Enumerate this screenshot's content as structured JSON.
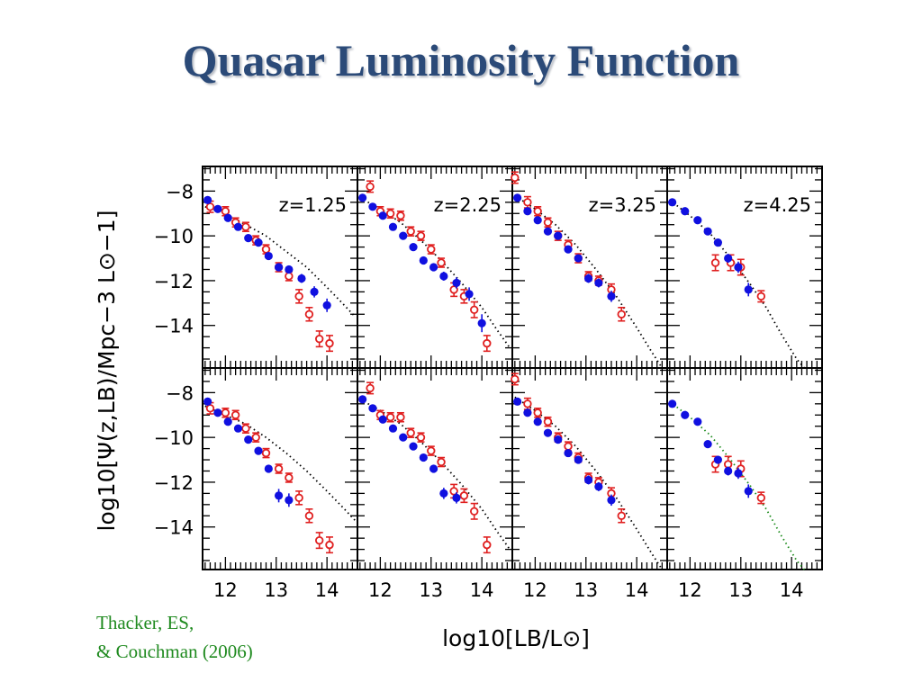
{
  "slide": {
    "title": "Quasar Luminosity Function",
    "citation_line1": "Thacker, ES,",
    "citation_line2": "& Couchman (2006)"
  },
  "colors": {
    "title": "#2b4a78",
    "simulation": "#1010e0",
    "observed": "#e02020",
    "model_curve": "#000000",
    "model_curve_highz_bottom": "#1a8a1a",
    "citation": "#1f8a1f"
  },
  "chart_data": {
    "type": "scatter",
    "layout": "2 rows x 4 columns of panels, shared axes",
    "xlabel": "log10[LB/L⊙]",
    "ylabel": "log10[Ψ(z,LB)/Mpc−3 L⊙−1]",
    "xlim": [
      11.55,
      14.6
    ],
    "ylim": [
      -15.9,
      -6.9
    ],
    "x_ticks": [
      12,
      13,
      14
    ],
    "y_ticks": [
      -8,
      -10,
      -12,
      -14
    ],
    "x_tick_labels": [
      "12",
      "13",
      "14"
    ],
    "y_tick_labels": [
      "−8",
      "−10",
      "−12",
      "−14"
    ],
    "panel_labels": [
      "z=1.25",
      "z=2.25",
      "z=3.25",
      "z=4.25"
    ],
    "series_styles": {
      "simulation": "filled blue circles with error bars",
      "observed": "open red circles with error bars",
      "model": "dotted curve"
    },
    "panels": [
      {
        "row": 0,
        "label": "z=1.25",
        "simulation": [
          [
            11.65,
            -8.4,
            0.1
          ],
          [
            11.85,
            -8.8,
            0.1
          ],
          [
            12.05,
            -9.2,
            0.1
          ],
          [
            12.25,
            -9.6,
            0.1
          ],
          [
            12.45,
            -10.1,
            0.12
          ],
          [
            12.65,
            -10.3,
            0.12
          ],
          [
            12.85,
            -10.9,
            0.12
          ],
          [
            13.05,
            -11.4,
            0.15
          ],
          [
            13.25,
            -11.5,
            0.15
          ],
          [
            13.5,
            -11.9,
            0.2
          ],
          [
            13.75,
            -12.5,
            0.25
          ],
          [
            14.0,
            -13.1,
            0.3
          ]
        ],
        "observed": [
          [
            11.7,
            -8.7,
            0.25
          ],
          [
            12.0,
            -8.9,
            0.2
          ],
          [
            12.2,
            -9.4,
            0.2
          ],
          [
            12.4,
            -9.6,
            0.2
          ],
          [
            12.6,
            -10.2,
            0.2
          ],
          [
            12.8,
            -10.6,
            0.2
          ],
          [
            13.05,
            -11.4,
            0.2
          ],
          [
            13.25,
            -11.8,
            0.2
          ],
          [
            13.45,
            -12.7,
            0.3
          ],
          [
            13.65,
            -13.5,
            0.3
          ],
          [
            13.85,
            -14.6,
            0.35
          ],
          [
            14.05,
            -14.8,
            0.35
          ]
        ],
        "model": [
          [
            11.6,
            -8.7
          ],
          [
            12.0,
            -9.0
          ],
          [
            12.4,
            -9.5
          ],
          [
            12.8,
            -10.0
          ],
          [
            13.2,
            -10.7
          ],
          [
            13.6,
            -11.4
          ],
          [
            14.0,
            -12.3
          ],
          [
            14.3,
            -13.0
          ],
          [
            14.55,
            -13.6
          ]
        ]
      },
      {
        "row": 0,
        "label": "z=2.25",
        "simulation": [
          [
            11.65,
            -8.3,
            0.1
          ],
          [
            11.85,
            -8.7,
            0.1
          ],
          [
            12.05,
            -9.1,
            0.1
          ],
          [
            12.25,
            -9.6,
            0.1
          ],
          [
            12.45,
            -10.0,
            0.12
          ],
          [
            12.65,
            -10.5,
            0.12
          ],
          [
            12.85,
            -11.1,
            0.12
          ],
          [
            13.05,
            -11.4,
            0.15
          ],
          [
            13.25,
            -11.8,
            0.2
          ],
          [
            13.5,
            -12.1,
            0.25
          ],
          [
            13.75,
            -12.6,
            0.3
          ],
          [
            14.0,
            -13.9,
            0.4
          ]
        ],
        "observed": [
          [
            11.8,
            -7.8,
            0.25
          ],
          [
            12.0,
            -8.9,
            0.2
          ],
          [
            12.2,
            -9.0,
            0.2
          ],
          [
            12.4,
            -9.1,
            0.2
          ],
          [
            12.6,
            -9.8,
            0.2
          ],
          [
            12.8,
            -10.0,
            0.2
          ],
          [
            13.0,
            -10.6,
            0.2
          ],
          [
            13.2,
            -11.2,
            0.2
          ],
          [
            13.45,
            -12.4,
            0.3
          ],
          [
            13.65,
            -12.7,
            0.3
          ],
          [
            13.85,
            -13.3,
            0.35
          ],
          [
            14.1,
            -14.8,
            0.35
          ]
        ],
        "model": [
          [
            11.6,
            -8.3
          ],
          [
            12.0,
            -8.8
          ],
          [
            12.4,
            -9.4
          ],
          [
            12.8,
            -10.2
          ],
          [
            13.2,
            -11.1
          ],
          [
            13.6,
            -12.1
          ],
          [
            14.0,
            -13.2
          ],
          [
            14.3,
            -14.2
          ],
          [
            14.55,
            -15.0
          ]
        ]
      },
      {
        "row": 0,
        "label": "z=3.25",
        "simulation": [
          [
            11.65,
            -8.3,
            0.1
          ],
          [
            11.85,
            -8.9,
            0.1
          ],
          [
            12.05,
            -9.3,
            0.1
          ],
          [
            12.25,
            -9.8,
            0.12
          ],
          [
            12.45,
            -10.0,
            0.12
          ],
          [
            12.65,
            -10.6,
            0.15
          ],
          [
            12.85,
            -11.0,
            0.15
          ],
          [
            13.05,
            -11.9,
            0.2
          ],
          [
            13.25,
            -12.1,
            0.2
          ],
          [
            13.5,
            -12.7,
            0.25
          ]
        ],
        "observed": [
          [
            11.6,
            -7.4,
            0.25
          ],
          [
            11.85,
            -8.5,
            0.25
          ],
          [
            12.05,
            -8.9,
            0.2
          ],
          [
            12.25,
            -9.4,
            0.2
          ],
          [
            12.45,
            -10.0,
            0.2
          ],
          [
            12.65,
            -10.4,
            0.2
          ],
          [
            12.85,
            -11.0,
            0.2
          ],
          [
            13.05,
            -11.8,
            0.2
          ],
          [
            13.25,
            -12.0,
            0.2
          ],
          [
            13.5,
            -12.4,
            0.25
          ],
          [
            13.7,
            -13.5,
            0.3
          ]
        ],
        "model": [
          [
            11.6,
            -8.2
          ],
          [
            12.0,
            -8.8
          ],
          [
            12.4,
            -9.5
          ],
          [
            12.8,
            -10.4
          ],
          [
            13.2,
            -11.5
          ],
          [
            13.6,
            -12.7
          ],
          [
            14.0,
            -14.1
          ],
          [
            14.3,
            -15.2
          ],
          [
            14.5,
            -15.9
          ]
        ]
      },
      {
        "row": 0,
        "label": "z=4.25",
        "simulation": [
          [
            11.65,
            -8.5,
            0.1
          ],
          [
            11.9,
            -8.9,
            0.1
          ],
          [
            12.15,
            -9.3,
            0.1
          ],
          [
            12.35,
            -9.8,
            0.12
          ],
          [
            12.55,
            -10.3,
            0.15
          ],
          [
            12.75,
            -11.0,
            0.2
          ],
          [
            12.95,
            -11.4,
            0.25
          ],
          [
            13.15,
            -12.4,
            0.3
          ]
        ],
        "observed": [
          [
            12.5,
            -11.2,
            0.35
          ],
          [
            12.8,
            -11.2,
            0.35
          ],
          [
            13.0,
            -11.4,
            0.35
          ],
          [
            13.4,
            -12.7,
            0.25
          ]
        ],
        "model": [
          [
            11.6,
            -8.4
          ],
          [
            12.0,
            -9.1
          ],
          [
            12.4,
            -9.9
          ],
          [
            12.8,
            -11.0
          ],
          [
            13.2,
            -12.2
          ],
          [
            13.5,
            -13.2
          ],
          [
            13.8,
            -14.4
          ],
          [
            14.1,
            -15.5
          ],
          [
            14.25,
            -15.9
          ]
        ]
      },
      {
        "row": 1,
        "label": "",
        "simulation": [
          [
            11.65,
            -8.4,
            0.1
          ],
          [
            11.85,
            -8.9,
            0.1
          ],
          [
            12.05,
            -9.3,
            0.1
          ],
          [
            12.25,
            -9.6,
            0.12
          ],
          [
            12.45,
            -10.1,
            0.12
          ],
          [
            12.65,
            -10.6,
            0.15
          ],
          [
            12.85,
            -11.4,
            0.15
          ],
          [
            13.05,
            -12.6,
            0.3
          ],
          [
            13.25,
            -12.8,
            0.3
          ]
        ],
        "observed": [
          [
            11.7,
            -8.7,
            0.25
          ],
          [
            12.0,
            -8.9,
            0.2
          ],
          [
            12.2,
            -9.0,
            0.2
          ],
          [
            12.4,
            -9.6,
            0.2
          ],
          [
            12.6,
            -10.0,
            0.2
          ],
          [
            12.8,
            -10.7,
            0.2
          ],
          [
            13.05,
            -11.4,
            0.2
          ],
          [
            13.25,
            -11.8,
            0.2
          ],
          [
            13.45,
            -12.7,
            0.3
          ],
          [
            13.65,
            -13.5,
            0.3
          ],
          [
            13.85,
            -14.6,
            0.35
          ],
          [
            14.05,
            -14.8,
            0.35
          ]
        ],
        "model": [
          [
            11.6,
            -8.6
          ],
          [
            12.0,
            -9.0
          ],
          [
            12.4,
            -9.4
          ],
          [
            12.8,
            -10.0
          ],
          [
            13.2,
            -10.7
          ],
          [
            13.6,
            -11.5
          ],
          [
            14.0,
            -12.4
          ],
          [
            14.3,
            -13.1
          ],
          [
            14.55,
            -13.7
          ]
        ]
      },
      {
        "row": 1,
        "label": "",
        "simulation": [
          [
            11.65,
            -8.3,
            0.1
          ],
          [
            11.85,
            -8.7,
            0.1
          ],
          [
            12.05,
            -9.2,
            0.1
          ],
          [
            12.25,
            -9.6,
            0.1
          ],
          [
            12.45,
            -10.0,
            0.12
          ],
          [
            12.65,
            -10.4,
            0.12
          ],
          [
            12.85,
            -10.9,
            0.12
          ],
          [
            13.05,
            -11.4,
            0.15
          ],
          [
            13.25,
            -12.5,
            0.25
          ],
          [
            13.5,
            -12.7,
            0.25
          ]
        ],
        "observed": [
          [
            11.8,
            -7.8,
            0.25
          ],
          [
            12.0,
            -9.0,
            0.2
          ],
          [
            12.2,
            -9.1,
            0.2
          ],
          [
            12.4,
            -9.1,
            0.2
          ],
          [
            12.6,
            -9.8,
            0.2
          ],
          [
            12.8,
            -10.0,
            0.2
          ],
          [
            13.0,
            -10.6,
            0.2
          ],
          [
            13.2,
            -11.1,
            0.2
          ],
          [
            13.45,
            -12.4,
            0.3
          ],
          [
            13.65,
            -12.6,
            0.3
          ],
          [
            13.85,
            -13.3,
            0.35
          ],
          [
            14.1,
            -14.8,
            0.35
          ]
        ],
        "model": [
          [
            11.6,
            -8.3
          ],
          [
            12.0,
            -8.8
          ],
          [
            12.4,
            -9.4
          ],
          [
            12.8,
            -10.2
          ],
          [
            13.2,
            -11.1
          ],
          [
            13.6,
            -12.1
          ],
          [
            14.0,
            -13.2
          ],
          [
            14.3,
            -14.2
          ],
          [
            14.55,
            -15.0
          ]
        ]
      },
      {
        "row": 1,
        "label": "",
        "simulation": [
          [
            11.65,
            -8.4,
            0.1
          ],
          [
            11.85,
            -8.9,
            0.1
          ],
          [
            12.05,
            -9.3,
            0.1
          ],
          [
            12.25,
            -9.8,
            0.12
          ],
          [
            12.45,
            -10.1,
            0.12
          ],
          [
            12.65,
            -10.7,
            0.15
          ],
          [
            12.85,
            -11.0,
            0.15
          ],
          [
            13.05,
            -11.9,
            0.2
          ],
          [
            13.25,
            -12.2,
            0.2
          ],
          [
            13.5,
            -12.8,
            0.25
          ]
        ],
        "observed": [
          [
            11.6,
            -7.4,
            0.25
          ],
          [
            11.85,
            -8.5,
            0.25
          ],
          [
            12.05,
            -8.9,
            0.2
          ],
          [
            12.25,
            -9.3,
            0.2
          ],
          [
            12.45,
            -10.0,
            0.2
          ],
          [
            12.65,
            -10.4,
            0.2
          ],
          [
            12.85,
            -10.9,
            0.2
          ],
          [
            13.05,
            -11.8,
            0.2
          ],
          [
            13.25,
            -12.0,
            0.2
          ],
          [
            13.5,
            -12.5,
            0.25
          ],
          [
            13.7,
            -13.5,
            0.3
          ]
        ],
        "model": [
          [
            11.6,
            -8.2
          ],
          [
            12.0,
            -8.8
          ],
          [
            12.4,
            -9.5
          ],
          [
            12.8,
            -10.4
          ],
          [
            13.2,
            -11.5
          ],
          [
            13.6,
            -12.7
          ],
          [
            14.0,
            -14.1
          ],
          [
            14.3,
            -15.2
          ],
          [
            14.5,
            -15.9
          ]
        ]
      },
      {
        "row": 1,
        "label": "",
        "simulation": [
          [
            11.65,
            -8.5,
            0.1
          ],
          [
            11.9,
            -9.0,
            0.1
          ],
          [
            12.15,
            -9.3,
            0.1
          ],
          [
            12.35,
            -10.3,
            0.12
          ],
          [
            12.55,
            -11.0,
            0.15
          ],
          [
            12.75,
            -11.5,
            0.2
          ],
          [
            12.95,
            -11.6,
            0.25
          ],
          [
            13.15,
            -12.4,
            0.3
          ]
        ],
        "observed": [
          [
            12.5,
            -11.2,
            0.35
          ],
          [
            12.75,
            -11.2,
            0.35
          ],
          [
            13.0,
            -11.4,
            0.35
          ],
          [
            13.4,
            -12.7,
            0.25
          ]
        ],
        "model_color": "green",
        "model": [
          [
            11.6,
            -8.4
          ],
          [
            12.0,
            -9.1
          ],
          [
            12.4,
            -9.9
          ],
          [
            12.8,
            -11.0
          ],
          [
            13.2,
            -12.2
          ],
          [
            13.5,
            -13.2
          ],
          [
            13.8,
            -14.4
          ],
          [
            14.1,
            -15.5
          ],
          [
            14.25,
            -15.9
          ]
        ]
      }
    ]
  }
}
